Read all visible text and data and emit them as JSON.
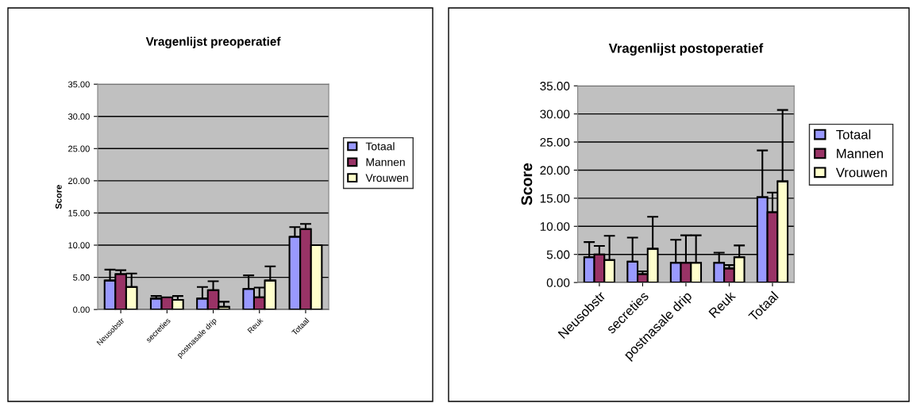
{
  "chart_data": [
    {
      "type": "bar",
      "title": "Vragenlijst preoperatief",
      "ylabel": "Score",
      "categories": [
        "Neusobstr",
        "secreties",
        "postnasale drip",
        "Reuk",
        "Totaal"
      ],
      "series": [
        {
          "name": "Totaal",
          "color": "#9999ff",
          "values": [
            4.5,
            1.7,
            1.7,
            3.2,
            11.3
          ],
          "errors": [
            [
              4.5,
              6.2
            ],
            [
              1.7,
              2.1
            ],
            [
              1.7,
              3.5
            ],
            [
              3.2,
              5.3
            ],
            [
              11.3,
              12.8
            ]
          ]
        },
        {
          "name": "Mannen",
          "color": "#993366",
          "values": [
            5.5,
            1.9,
            3.0,
            1.9,
            12.5
          ],
          "errors": [
            [
              5.5,
              6.1
            ],
            null,
            [
              3.0,
              4.4
            ],
            [
              1.9,
              3.4
            ],
            [
              12.5,
              13.3
            ]
          ]
        },
        {
          "name": "Vrouwen",
          "color": "#ffffcc",
          "values": [
            3.5,
            1.5,
            0.4,
            4.5,
            10.0
          ],
          "errors": [
            [
              3.5,
              5.6
            ],
            [
              1.5,
              2.1
            ],
            [
              0.4,
              1.2
            ],
            [
              4.5,
              6.7
            ],
            null
          ]
        }
      ],
      "ylim": [
        0,
        35
      ],
      "yticks": [
        {
          "value": 0,
          "label": "0.00"
        },
        {
          "value": 5,
          "label": "5.00"
        },
        {
          "value": 10,
          "label": "10.00"
        },
        {
          "value": 15,
          "label": "15.00"
        },
        {
          "value": 20,
          "label": "20.00"
        },
        {
          "value": 25,
          "label": "25.00"
        },
        {
          "value": 30,
          "label": "30.00"
        },
        {
          "value": 35,
          "label": "35.00"
        }
      ],
      "grid": "y",
      "legend": "right"
    },
    {
      "type": "bar",
      "title": "Vragenlijst postoperatief",
      "ylabel": "Score",
      "categories": [
        "Neusobstr",
        "secreties",
        "postnasale drip",
        "Reuk",
        "Totaal"
      ],
      "series": [
        {
          "name": "Totaal",
          "color": "#9999ff",
          "values": [
            4.5,
            3.7,
            3.5,
            3.5,
            15.2
          ],
          "errors": [
            [
              4.5,
              7.2
            ],
            [
              3.7,
              8.0
            ],
            [
              3.5,
              7.6
            ],
            [
              3.5,
              5.3
            ],
            [
              15.2,
              23.5
            ]
          ]
        },
        {
          "name": "Mannen",
          "color": "#993366",
          "values": [
            5.0,
            1.5,
            3.5,
            2.5,
            12.5
          ],
          "errors": [
            [
              5.0,
              6.5
            ],
            [
              1.5,
              2.0
            ],
            [
              3.5,
              8.4
            ],
            [
              2.5,
              3.1
            ],
            [
              12.5,
              16.0
            ]
          ]
        },
        {
          "name": "Vrouwen",
          "color": "#ffffcc",
          "values": [
            4.0,
            6.0,
            3.5,
            4.5,
            18.0
          ],
          "errors": [
            [
              4.0,
              8.3
            ],
            [
              6.0,
              11.7
            ],
            [
              3.5,
              8.4
            ],
            [
              4.5,
              6.6
            ],
            [
              18.0,
              30.7
            ]
          ]
        }
      ],
      "ylim": [
        0,
        35
      ],
      "yticks": [
        {
          "value": 0,
          "label": "0.00"
        },
        {
          "value": 5,
          "label": "5.00"
        },
        {
          "value": 10,
          "label": "10.00"
        },
        {
          "value": 15,
          "label": "15.00"
        },
        {
          "value": 20,
          "label": "20.00"
        },
        {
          "value": 25,
          "label": "25.00"
        },
        {
          "value": 30,
          "label": "30.00"
        },
        {
          "value": 35,
          "label": "35.00"
        }
      ],
      "grid": "y",
      "legend": "right"
    }
  ]
}
